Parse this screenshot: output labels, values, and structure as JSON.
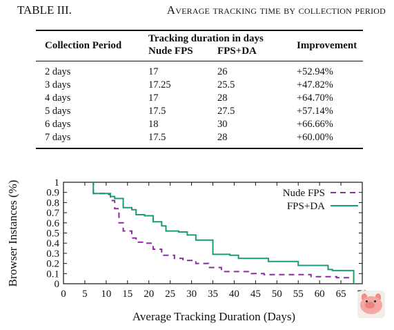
{
  "table": {
    "number": "TABLE III.",
    "title": "Average tracking time by collection period",
    "headers": {
      "period": "Collection Period",
      "group": "Tracking duration in days",
      "nude": "Nude FPS",
      "fpsda": "FPS+DA",
      "improvement": "Improvement"
    },
    "rows": [
      {
        "period": "2 days",
        "nude": "17",
        "fpsda": "26",
        "improvement": "+52.94%"
      },
      {
        "period": "3 days",
        "nude": "17.25",
        "fpsda": "25.5",
        "improvement": "+47.82%"
      },
      {
        "period": "4 days",
        "nude": "17",
        "fpsda": "28",
        "improvement": "+64.70%"
      },
      {
        "period": "5 days",
        "nude": "17.5",
        "fpsda": "27.5",
        "improvement": "+57.14%"
      },
      {
        "period": "6 days",
        "nude": "18",
        "fpsda": "30",
        "improvement": "+66.66%"
      },
      {
        "period": "7 days",
        "nude": "17.5",
        "fpsda": "28",
        "improvement": "+60.00%"
      }
    ]
  },
  "chart_data": {
    "type": "line",
    "xlabel": "Average Tracking Duration (Days)",
    "ylabel": "Browser Instances (%)",
    "xlim": [
      0,
      70
    ],
    "ylim": [
      0,
      1
    ],
    "xticks": [
      "0",
      "5",
      "10",
      "15",
      "20",
      "25",
      "30",
      "35",
      "40",
      "45",
      "50",
      "55",
      "60",
      "65",
      "70"
    ],
    "yticks": [
      "0",
      "0.1",
      "0.2",
      "0.3",
      "0.4",
      "0.5",
      "0.6",
      "0.7",
      "0.8",
      "0.9",
      "1"
    ],
    "legend_position": "top-right",
    "grid": false,
    "series": [
      {
        "name": "Nude FPS",
        "color": "#8a2ca0",
        "dash": true,
        "x": [
          6.5,
          7,
          10,
          11,
          12,
          13,
          14,
          16,
          17,
          19,
          21,
          23,
          26,
          28,
          31,
          34,
          37,
          44,
          47,
          52,
          58,
          64,
          67
        ],
        "y": [
          1.0,
          0.89,
          0.88,
          0.82,
          0.74,
          0.6,
          0.52,
          0.45,
          0.41,
          0.4,
          0.34,
          0.28,
          0.25,
          0.23,
          0.2,
          0.16,
          0.12,
          0.1,
          0.09,
          0.09,
          0.07,
          0.06,
          0.06
        ]
      },
      {
        "name": "FPS+DA",
        "color": "#1a9a7a",
        "dash": false,
        "x": [
          6.5,
          7,
          11,
          12,
          14,
          16,
          17,
          19,
          21,
          23,
          24,
          27,
          29,
          31,
          35,
          39,
          41,
          48,
          55,
          62,
          63,
          68
        ],
        "y": [
          1.0,
          0.89,
          0.86,
          0.84,
          0.75,
          0.73,
          0.68,
          0.67,
          0.61,
          0.57,
          0.52,
          0.51,
          0.48,
          0.43,
          0.29,
          0.28,
          0.25,
          0.22,
          0.18,
          0.14,
          0.13,
          0.0
        ]
      }
    ]
  }
}
